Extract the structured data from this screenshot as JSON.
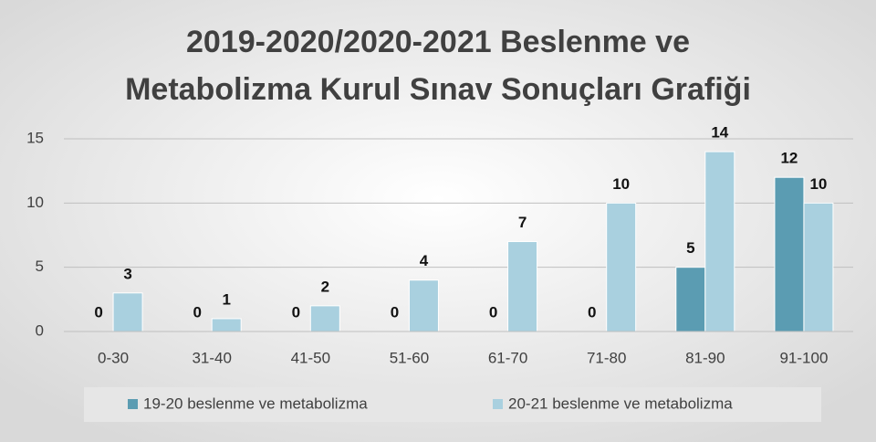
{
  "chart_data": {
    "type": "bar",
    "title": [
      "2019-2020/2020-2021 Beslenme ve",
      "Metabolizma Kurul Sınav Sonuçları Grafiği"
    ],
    "categories": [
      "0-30",
      "31-40",
      "41-50",
      "51-60",
      "61-70",
      "71-80",
      "81-90",
      "91-100"
    ],
    "series": [
      {
        "name": "19-20 beslenme ve metabolizma",
        "color": "#5b9cb2",
        "values": [
          0,
          0,
          0,
          0,
          0,
          0,
          5,
          12
        ]
      },
      {
        "name": "20-21 beslenme ve metabolizma",
        "color": "#a9d0df",
        "values": [
          3,
          1,
          2,
          4,
          7,
          10,
          14,
          10
        ]
      }
    ],
    "ylim": [
      0,
      15
    ],
    "yticks": [
      0,
      5,
      10,
      15
    ],
    "grid": true,
    "legend": "bottom",
    "data_labels": true
  }
}
